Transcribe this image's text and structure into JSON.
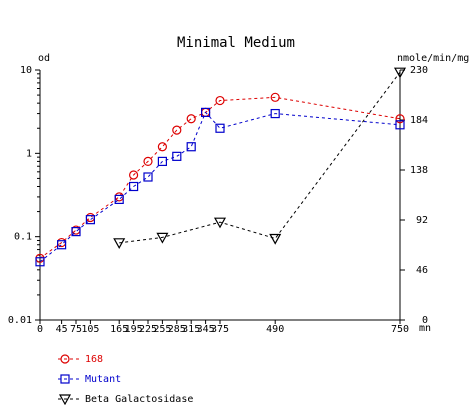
{
  "chart_data": {
    "type": "line",
    "title": "Minimal Medium",
    "x_unit": "mn",
    "x_ticks": [
      0,
      45,
      75,
      105,
      165,
      195,
      225,
      255,
      285,
      315,
      345,
      375,
      490,
      750
    ],
    "x_tick_labels": [
      "0",
      "45",
      "75",
      "105",
      "165",
      "195",
      "225",
      "255",
      "285",
      "315",
      "345",
      "375",
      "490",
      "750"
    ],
    "xlim": [
      0,
      750
    ],
    "y_left": {
      "label": "od",
      "scale": "log",
      "ylim": [
        0.01,
        10
      ],
      "ticks": [
        0.01,
        0.1,
        1,
        10
      ],
      "tick_labels": [
        "0.01",
        "0.1",
        "1",
        "10"
      ]
    },
    "y_right": {
      "label": "nmole/min/mg",
      "scale": "linear",
      "ylim": [
        0,
        230
      ],
      "ticks": [
        0,
        46,
        92,
        138,
        184,
        230
      ],
      "tick_labels": [
        "0",
        "46",
        "92",
        "138",
        "184",
        "230"
      ]
    },
    "series": [
      {
        "name": "168",
        "axis": "left",
        "marker": "circle",
        "color": "#dd0000",
        "x": [
          0,
          45,
          75,
          105,
          165,
          195,
          225,
          255,
          285,
          315,
          345,
          375,
          490,
          750
        ],
        "y": [
          0.055,
          0.085,
          0.12,
          0.17,
          0.3,
          0.55,
          0.8,
          1.2,
          1.9,
          2.6,
          3.1,
          4.3,
          4.7,
          2.6
        ]
      },
      {
        "name": "Mutant",
        "axis": "left",
        "marker": "square",
        "color": "#0000cc",
        "x": [
          0,
          45,
          75,
          105,
          165,
          195,
          225,
          255,
          285,
          315,
          345,
          375,
          490,
          750
        ],
        "y": [
          0.05,
          0.08,
          0.115,
          0.16,
          0.28,
          0.4,
          0.52,
          0.8,
          0.92,
          1.2,
          3.1,
          2.0,
          3.0,
          2.2
        ]
      },
      {
        "name": "Beta Galactosidase",
        "axis": "right",
        "marker": "triangle-down",
        "color": "#000000",
        "x": [
          165,
          255,
          375,
          490,
          750
        ],
        "y": [
          71,
          76,
          90,
          75,
          228
        ]
      }
    ],
    "grid": false,
    "legend_position": "bottom-left"
  }
}
